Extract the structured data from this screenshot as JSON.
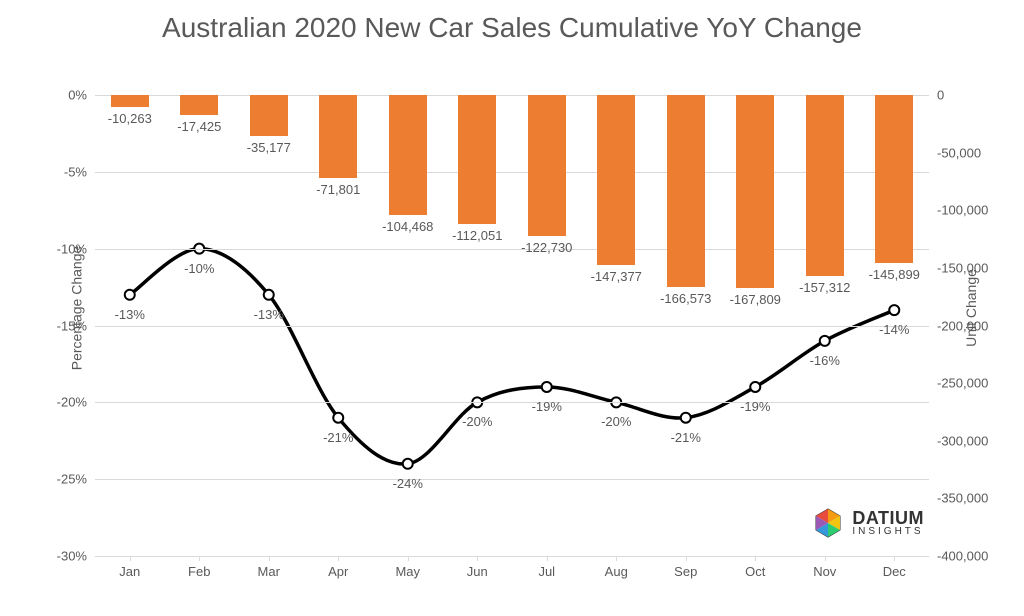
{
  "title": "Australian 2020 New Car Sales Cumulative YoY Change",
  "chart": {
    "type": "combo-bar-line",
    "background_color": "#ffffff",
    "grid_color": "#d9d9d9",
    "text_color": "#595959",
    "title_fontsize": 28,
    "tick_fontsize": 13,
    "label_fontsize": 14,
    "categories": [
      "Jan",
      "Feb",
      "Mar",
      "Apr",
      "May",
      "Jun",
      "Jul",
      "Aug",
      "Sep",
      "Oct",
      "Nov",
      "Dec"
    ],
    "bars": {
      "values": [
        -10263,
        -17425,
        -35177,
        -71801,
        -104468,
        -112051,
        -122730,
        -147377,
        -166573,
        -167809,
        -157312,
        -145899
      ],
      "labels": [
        "-10,263",
        "-17,425",
        "-35,177",
        "-71,801",
        "-104,468",
        "-112,051",
        "-122,730",
        "-147,377",
        "-166,573",
        "-167,809",
        "-157,312",
        "-145,899"
      ],
      "color": "#ed7d31",
      "bar_width": 0.55
    },
    "line": {
      "values": [
        -13,
        -10,
        -13,
        -21,
        -24,
        -20,
        -19,
        -20,
        -21,
        -19,
        -16,
        -14
      ],
      "labels": [
        "-13%",
        "-10%",
        "-13%",
        "-21%",
        "-24%",
        "-20%",
        "-19%",
        "-20%",
        "-21%",
        "-19%",
        "-16%",
        "-14%"
      ],
      "stroke_color": "#000000",
      "stroke_width": 3.5,
      "marker_fill": "#ffffff",
      "marker_stroke": "#000000",
      "marker_radius": 5
    },
    "y_left": {
      "label": "Percentage Change",
      "min": -30,
      "max": 0,
      "step": 5,
      "ticks": [
        "0%",
        "-5%",
        "-10%",
        "-15%",
        "-20%",
        "-25%",
        "-30%"
      ],
      "tick_values": [
        0,
        -5,
        -10,
        -15,
        -20,
        -25,
        -30
      ]
    },
    "y_right": {
      "label": "Unit Change",
      "min": -400000,
      "max": 0,
      "step": 50000,
      "ticks": [
        "0",
        "-50,000",
        "-100,000",
        "-150,000",
        "-200,000",
        "-250,000",
        "-300,000",
        "-350,000",
        "-400,000"
      ],
      "tick_values": [
        0,
        -50000,
        -100000,
        -150000,
        -200000,
        -250000,
        -300000,
        -350000,
        -400000
      ]
    }
  },
  "logo": {
    "main": "DATIUM",
    "sub": "INSIGHTS",
    "colors": [
      "#e74c3c",
      "#f39c12",
      "#f1c40f",
      "#2ecc71",
      "#3498db",
      "#9b59b6"
    ]
  }
}
